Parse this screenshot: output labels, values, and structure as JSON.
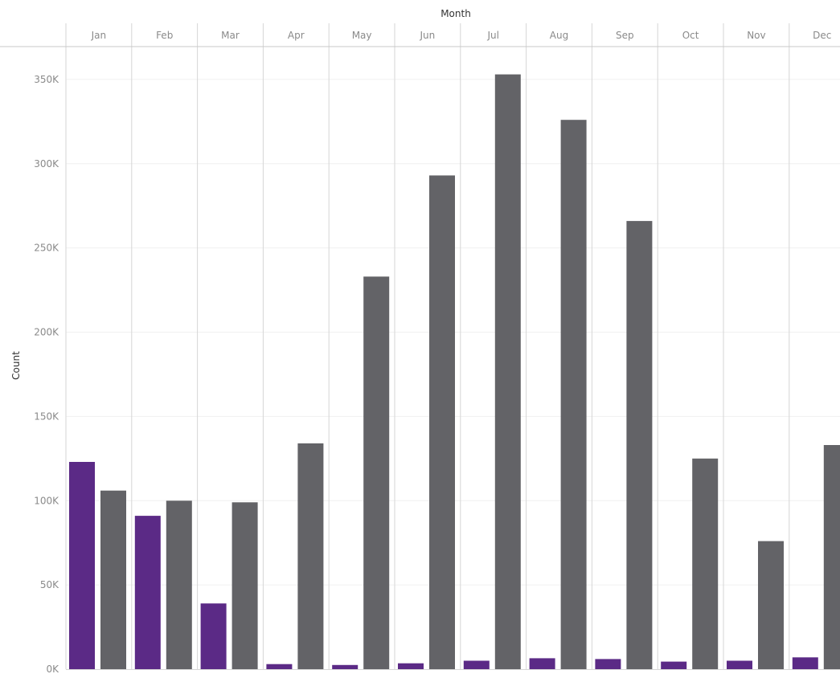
{
  "chart_data": {
    "type": "bar",
    "column_header": "Month",
    "categories": [
      "Jan",
      "Feb",
      "Mar",
      "Apr",
      "May",
      "Jun",
      "Jul",
      "Aug",
      "Sep",
      "Oct",
      "Nov",
      "Dec"
    ],
    "ylabel": "Count",
    "ylim": [
      0,
      370000
    ],
    "y_ticks": [
      0,
      50000,
      100000,
      150000,
      200000,
      250000,
      300000,
      350000
    ],
    "y_tick_labels": [
      "0K",
      "50K",
      "100K",
      "150K",
      "200K",
      "250K",
      "300K",
      "350K"
    ],
    "grid": true,
    "series": [
      {
        "color": "#5b2a86",
        "values": [
          123000,
          91000,
          39000,
          3000,
          2500,
          3500,
          5000,
          6500,
          6000,
          4500,
          5000,
          7000
        ]
      },
      {
        "color": "#636367",
        "values": [
          106000,
          100000,
          99000,
          134000,
          233000,
          293000,
          353000,
          326000,
          266000,
          125000,
          76000,
          133000
        ]
      }
    ]
  }
}
